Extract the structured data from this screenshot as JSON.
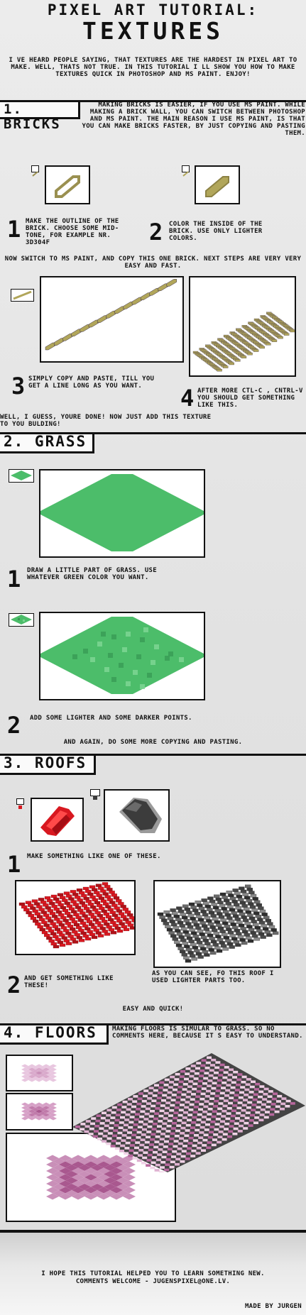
{
  "header": {
    "title_line1": "PIXEL ART TUTORIAL:",
    "title_line2": "TEXTURES",
    "intro": "I VE HEARD PEOPLE SAYING, THAT TEXTURES ARE THE HARDEST IN PIXEL ART TO MAKE. WELL, THATS NOT TRUE. IN THIS TUTORIAL I LL SHOW YOU HOW TO MAKE TEXTURES QUICK IN PHOTOSHOP AND MS PAINT. ENJOY!"
  },
  "bricks": {
    "heading": "1. BRICKS",
    "intro": "MAKING BRICKS IS EASIER, IF YOU USE MS PAINT. WHILE MAKING A BRICK WALL, YOU CAN SWITCH BETWEEN PHOTOSHOP AND MS PAINT. THE MAIN REASON I USE MS PAINT, IS THAT YOU CAN MAKE BRICKS FASTER, BY JUST COPYING AND PASTING THEM.",
    "step1_num": "1",
    "step1": "MAKE THE OUTLINE OF THE BRICK. CHOOSE SOME MID-TONE, FOR EXAMPLE NR. 3D304F",
    "step2_num": "2",
    "step2": "COLOR THE INSIDE OF THE BRICK. USE ONLY LIGHTER COLORS.",
    "switch_note": "NOW SWITCH TO MS PAINT, AND COPY THIS ONE BRICK. NEXT STEPS ARE VERY VERY EASY AND FAST.",
    "step3_num": "3",
    "step3": "SIMPLY COPY AND PASTE, TILL YOU GET A LINE LONG AS YOU WANT.",
    "step4_num": "4",
    "step4": "AFTER MORE CTL-C , CNTRL-V YOU SHOULD GET SOMETHING LIKE THIS.",
    "done": "WELL, I GUESS, YOURE DONE! NOW JUST ADD THIS TEXTURE TO YOU BULDING!"
  },
  "grass": {
    "heading": "2. GRASS",
    "step1_num": "1",
    "step1": "DRAW A LITTLE PART OF GRASS. USE WHATEVER GREEN COLOR YOU WANT.",
    "step2_num": "2",
    "step2": "ADD SOME LIGHTER AND SOME DARKER POINTS.",
    "again": "AND AGAIN, DO SOME MORE COPYING AND PASTING."
  },
  "roofs": {
    "heading": "3. ROOFS",
    "step1_num": "1",
    "step1": "MAKE SOMETHING LIKE ONE OF THESE.",
    "step2_num": "2",
    "step2": "AND GET SOMETHING LIKE THESE!",
    "note": "AS YOU CAN SEE, FO THIS ROOF I USED LIGHTER PARTS TOO.",
    "easy": "EASY AND QUICK!"
  },
  "floors": {
    "heading": "4. FLOORS",
    "intro": "MAKING FLOORS IS SIMULAR TO GRASS. SO NO COMMENTS HERE, BECAUSE IT S EASY TO UNDERSTAND."
  },
  "footer": {
    "line1": "I HOPE THIS TUTORIAL HELPED YOU TO LEARN SOMETHING NEW.",
    "line2": "COMMENTS WELCOME - JUGENSPIXEL@ONE.LV.",
    "credit": "MADE BY JURGEN"
  },
  "colors": {
    "brick_fill": "#b1a65a",
    "brick_outline": "#3d304f",
    "grass": "#4cbd6a",
    "roof_red": "#d81820",
    "roof_dark": "#3c3c3c",
    "floor_pink": "#e2b8d6",
    "floor_dark": "#a9588f"
  }
}
